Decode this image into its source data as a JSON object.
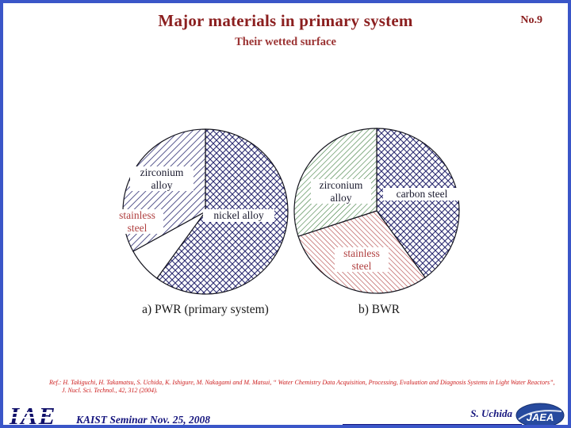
{
  "header": {
    "title": "Major materials in primary system",
    "slide_no": "No.9",
    "subtitle": "Their wetted surface"
  },
  "charts": {
    "pwr": {
      "caption": "a) PWR (primary system)",
      "labels": {
        "zirconium": "zirconium\nalloy",
        "stainless": "stainless\nsteel",
        "nickel": "nickel alloy"
      }
    },
    "bwr": {
      "caption": "b) BWR",
      "labels": {
        "zirconium": "zirconium\nalloy",
        "carbon": "carbon steel",
        "stainless": "stainless\nsteel"
      }
    }
  },
  "chart_data": [
    {
      "type": "pie",
      "title": "a) PWR (primary system)",
      "unit": "fraction of wetted surface (%)",
      "slices": [
        {
          "label": "nickel alloy",
          "value": 60,
          "pattern": "cross-navy"
        },
        {
          "label": "stainless steel",
          "value": 7,
          "pattern": "plain"
        },
        {
          "label": "zirconium alloy",
          "value": 33,
          "pattern": "diag-navy"
        }
      ]
    },
    {
      "type": "pie",
      "title": "b) BWR",
      "unit": "fraction of wetted surface (%)",
      "slices": [
        {
          "label": "carbon steel",
          "value": 40,
          "pattern": "cross-navy"
        },
        {
          "label": "stainless steel",
          "value": 30,
          "pattern": "diag-red"
        },
        {
          "label": "zirconium alloy",
          "value": 30,
          "pattern": "diag-green"
        }
      ]
    }
  ],
  "ref": {
    "line1": "Ref.:  H. Takiguchi, H. Takamatsu, S. Uchida, K. Ishigure, M. Nakagami and M. Matsui, “ Water Chemistry Data Acquisition, Processing, Evaluation and Diagnosis Systems in Light Water Reactors”,",
    "line2": "J. Nucl. Sci. Technol., 42, 312 (2004)."
  },
  "footer": {
    "seminar": "KAIST Seminar  Nov. 25, 2008",
    "author": "S. Uchida",
    "jaea_logo_text": "JAEA",
    "iae_logo_text": "IAE"
  },
  "colors": {
    "title_red": "#8b1f1f",
    "label_red": "#b04040",
    "ref_red": "#cc1c1c",
    "footer_navy": "#15157e",
    "hatch_navy": "#2a2a70",
    "hatch_green": "#3a7a3a",
    "hatch_red": "#b04040",
    "border_blue": "#3a56c8"
  }
}
